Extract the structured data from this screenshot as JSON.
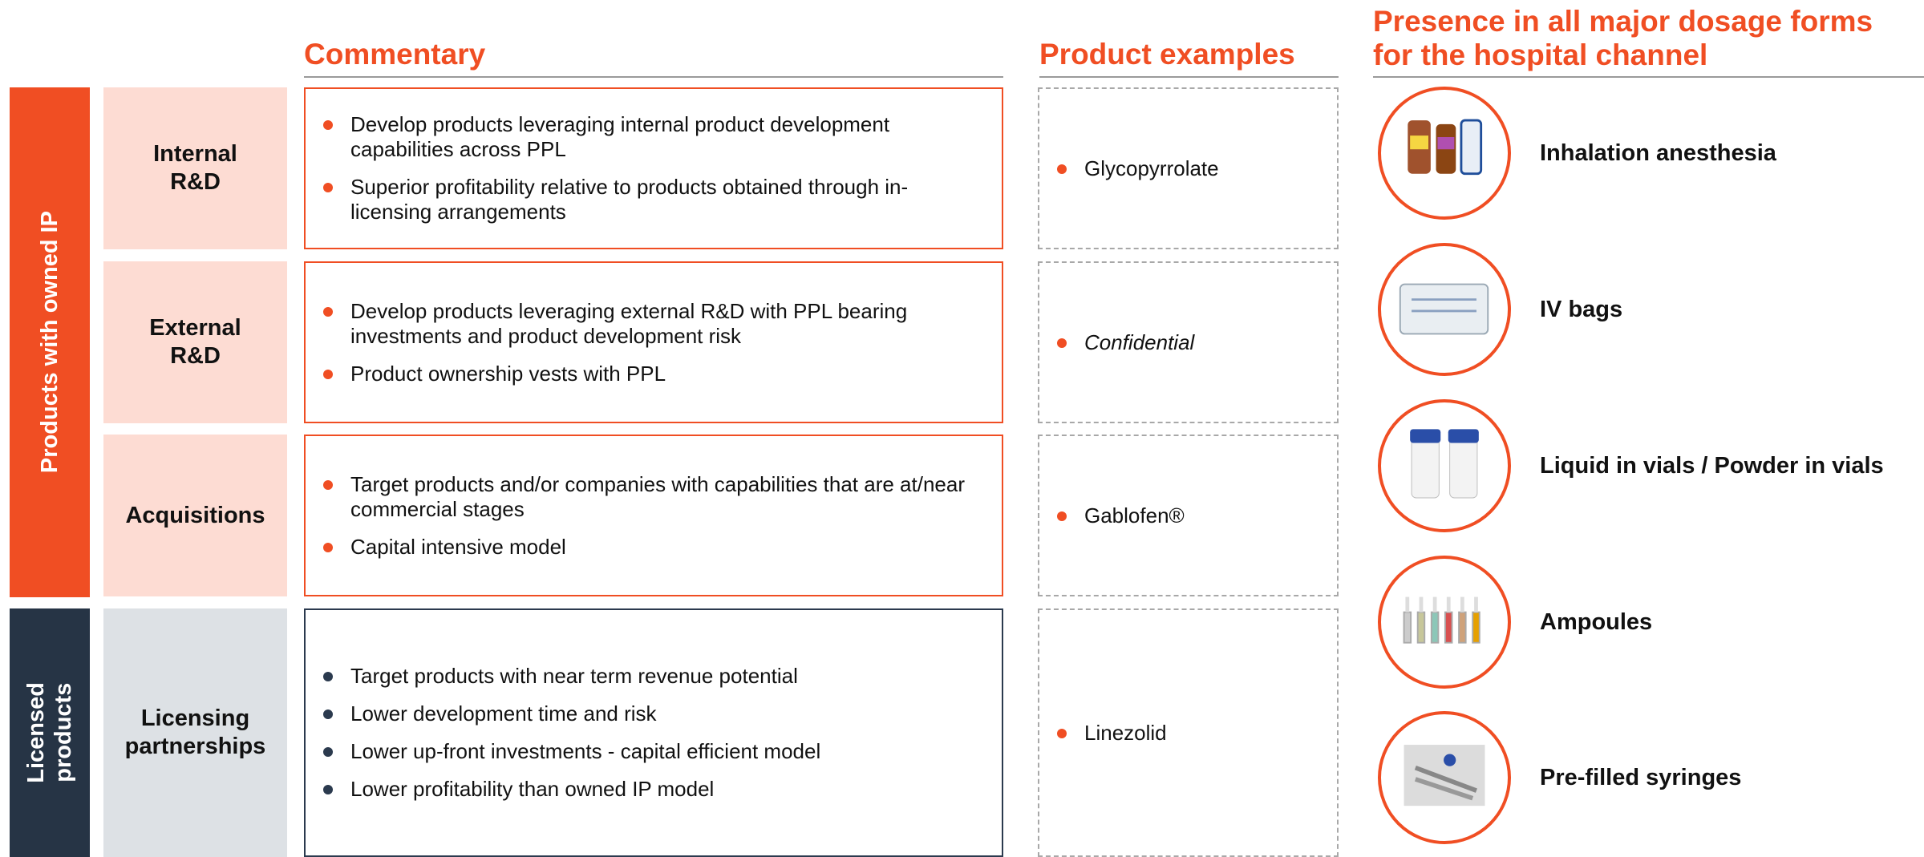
{
  "headers": {
    "commentary": "Commentary",
    "examples": "Product examples"
  },
  "presence": {
    "title": [
      "Presence in all major dosage forms",
      "for the hospital channel"
    ],
    "forms": [
      "Inhalation anesthesia",
      "IV bags",
      "Liquid in vials / Powder in vials",
      "Ampoules",
      "Pre-filled syringes"
    ]
  },
  "groups": [
    {
      "label": [
        "Products with owned IP"
      ],
      "rows": [
        {
          "category": [
            "Internal",
            "R&D"
          ],
          "bullets": [
            "Develop products leveraging internal product development capabilities across PPL",
            "Superior profitability relative to products obtained through in-licensing arrangements"
          ],
          "example": "Glycopyrrolate"
        },
        {
          "category": [
            "External",
            "R&D"
          ],
          "bullets": [
            "Develop products leveraging external R&D with PPL bearing investments and product development risk",
            "Product ownership vests with PPL"
          ],
          "example": "Confidential"
        },
        {
          "category": [
            "Acquisitions"
          ],
          "bullets": [
            "Target products and/or companies with capabilities that are at/near commercial stages",
            "Capital intensive model"
          ],
          "example": "Gablofen®"
        }
      ]
    },
    {
      "label": [
        "Licensed",
        "products"
      ],
      "rows": [
        {
          "category": [
            "Licensing",
            "partnerships"
          ],
          "bullets": [
            "Target products with near term revenue potential",
            "Lower development time and risk",
            "Lower up-front investments - capital efficient model",
            "Lower profitability than owned IP model"
          ],
          "example": "Linezolid"
        }
      ]
    }
  ]
}
